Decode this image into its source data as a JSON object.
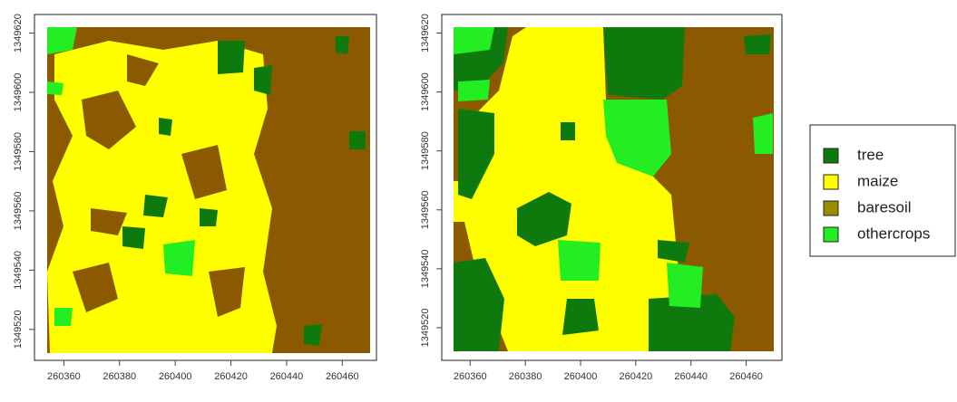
{
  "chart_data": [
    {
      "type": "raster",
      "xlim": [
        260354,
        260470
      ],
      "ylim": [
        1349512,
        1349622
      ],
      "xticks": [
        260360,
        260380,
        260400,
        260420,
        260440,
        260460
      ],
      "yticks": [
        1349520,
        1349540,
        1349560,
        1349580,
        1349600,
        1349620
      ]
    },
    {
      "type": "raster",
      "xlim": [
        260354,
        260470
      ],
      "ylim": [
        1349512,
        1349622
      ],
      "xticks": [
        260360,
        260380,
        260400,
        260420,
        260440,
        260460
      ],
      "yticks": [
        1349520,
        1349540,
        1349560,
        1349580,
        1349600,
        1349620
      ]
    }
  ],
  "legend": {
    "categories": [
      "tree",
      "maize",
      "baresoil",
      "othercrops"
    ],
    "colors": [
      "#0e7a0e",
      "#ffff00",
      "#9c8c00",
      "#22ee22"
    ]
  }
}
